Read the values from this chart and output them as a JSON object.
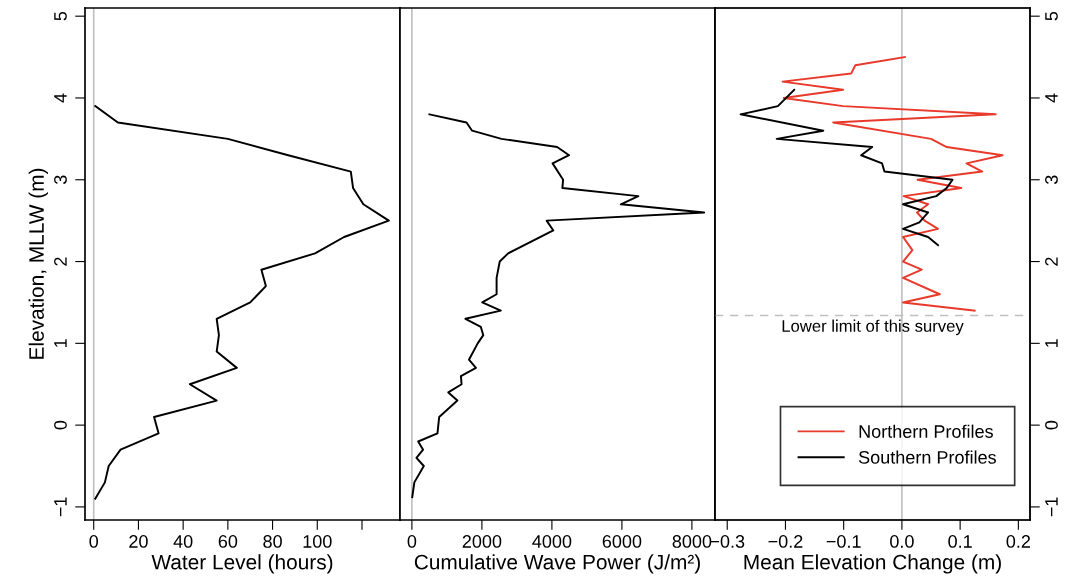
{
  "chart_data": [
    {
      "type": "line",
      "xlabel": "Water Level (hours)",
      "ylabel": "Elevation, MLLW (m)",
      "xlim": [
        -3.9,
        137
      ],
      "xticks": [
        0,
        20,
        40,
        60,
        80,
        100,
        {
          "value": 120,
          "label": null
        }
      ],
      "ylim": [
        -1.16,
        5.1
      ],
      "yticks": [
        {
          "value": -1,
          "label": "−1"
        },
        0,
        1,
        2,
        3,
        4,
        5
      ],
      "grid": false,
      "legend": false,
      "ref_lines": [
        {
          "axis": "x",
          "value": 0,
          "color": "#c0c0c0",
          "line_style": "solid"
        }
      ],
      "series": [
        {
          "color": "#000000",
          "x": [
            0.7,
            10.8,
            60,
            87,
            115,
            116,
            120.6,
            132,
            112,
            99,
            75,
            77,
            70,
            55,
            56,
            55,
            64,
            43,
            55,
            27,
            29,
            12,
            6.7,
            5,
            0.7
          ],
          "values": [
            3.9,
            3.7,
            3.5,
            3.3,
            3.1,
            2.9,
            2.7,
            2.5,
            2.3,
            2.1,
            1.9,
            1.7,
            1.5,
            1.3,
            1.1,
            0.9,
            0.7,
            0.5,
            0.3,
            0.1,
            -0.1,
            -0.3,
            -0.5,
            -0.7,
            -0.9
          ]
        }
      ]
    },
    {
      "type": "line",
      "xlabel": "Cumulative Wave Power (J/m²)",
      "xlim": [
        -340,
        8660
      ],
      "xticks": [
        0,
        2000,
        4000,
        6000,
        8000
      ],
      "ylim": [
        -1.16,
        5.1
      ],
      "yticks": [
        -1,
        0,
        1,
        2,
        3,
        4,
        5
      ],
      "tick_labels": "x",
      "grid": false,
      "legend": false,
      "ref_lines": [
        {
          "axis": "x",
          "value": 0,
          "color": "#c0c0c0",
          "line_style": "solid"
        }
      ],
      "series": [
        {
          "color": "#000000",
          "x": [
            500,
            1560,
            1720,
            2560,
            4150,
            4490,
            4020,
            4320,
            4300,
            6470,
            5970,
            8350,
            3850,
            4040,
            2750,
            2510,
            2420,
            2420,
            2010,
            2540,
            1530,
            1970,
            2040,
            1880,
            1630,
            1830,
            1400,
            1420,
            1040,
            1300,
            780,
            730,
            180,
            320,
            130,
            340,
            70,
            10
          ],
          "values": [
            3.8,
            3.7,
            3.6,
            3.5,
            3.4,
            3.3,
            3.2,
            3.0,
            2.9,
            2.8,
            2.7,
            2.6,
            2.5,
            2.38,
            2.1,
            2.0,
            1.8,
            1.6,
            1.5,
            1.4,
            1.3,
            1.2,
            1.1,
            1.0,
            0.8,
            0.7,
            0.6,
            0.5,
            0.4,
            0.3,
            0.1,
            -0.1,
            -0.2,
            -0.3,
            -0.4,
            -0.5,
            -0.7,
            -0.88
          ]
        }
      ]
    },
    {
      "type": "line",
      "xlabel": "Mean Elevation Change (m)",
      "xlim": [
        -0.321,
        0.22
      ],
      "xticks": [
        {
          "value": -0.3,
          "label": "−0.3"
        },
        {
          "value": -0.2,
          "label": "−0.2"
        },
        {
          "value": -0.1,
          "label": "−0.1"
        },
        {
          "value": 0,
          "label": "0.0"
        },
        {
          "value": 0.1,
          "label": "0.1"
        },
        {
          "value": 0.2,
          "label": "0.2"
        }
      ],
      "y2lim": [
        -1.16,
        5.1
      ],
      "y2ticks": [
        {
          "value": -1,
          "label": "−1"
        },
        0,
        1,
        2,
        3,
        4,
        5
      ],
      "grid": false,
      "legend": "bottom right",
      "ref_lines": [
        {
          "axis": "x",
          "value": 0,
          "color": "#c0c0c0",
          "line_style": "solid"
        },
        {
          "axis": "y2",
          "value": 1.34,
          "color": "#c0c0c0",
          "line_style": "dashed",
          "label": "Lower limit of this survey"
        }
      ],
      "series": [
        {
          "name": "Northern Profiles",
          "color": "#e8392b",
          "axis": "y2",
          "x": [
            0.005,
            -0.08,
            -0.087,
            -0.205,
            -0.101,
            -0.203,
            -0.101,
            0.161,
            -0.118,
            0.05,
            0.077,
            0.173,
            0.111,
            0.138,
            0.027,
            0.102,
            0.003,
            0.045,
            0.026,
            0.039,
            0.062,
            0.002,
            0.018,
            0.002,
            0.034,
            0.002,
            0.065,
            0.002,
            0.125
          ],
          "values": [
            4.5,
            4.4,
            4.3,
            4.2,
            4.1,
            4.0,
            3.9,
            3.8,
            3.7,
            3.5,
            3.4,
            3.3,
            3.2,
            3.1,
            3.0,
            2.9,
            2.8,
            2.7,
            2.6,
            2.5,
            2.4,
            2.3,
            2.14,
            2.0,
            1.9,
            1.8,
            1.6,
            1.5,
            1.4
          ]
        },
        {
          "name": "Southern Profiles",
          "color": "#000000",
          "axis": "y2",
          "x": [
            -0.185,
            -0.213,
            -0.277,
            -0.135,
            -0.215,
            -0.051,
            -0.07,
            -0.034,
            -0.03,
            0.087,
            0.077,
            0.059,
            0.002,
            0.045,
            0.03,
            0.002,
            0.045,
            0.062
          ],
          "values": [
            4.1,
            3.9,
            3.8,
            3.6,
            3.5,
            3.4,
            3.3,
            3.2,
            3.1,
            3.0,
            2.9,
            2.8,
            2.7,
            2.6,
            2.48,
            2.4,
            2.3,
            2.2
          ]
        }
      ]
    }
  ]
}
